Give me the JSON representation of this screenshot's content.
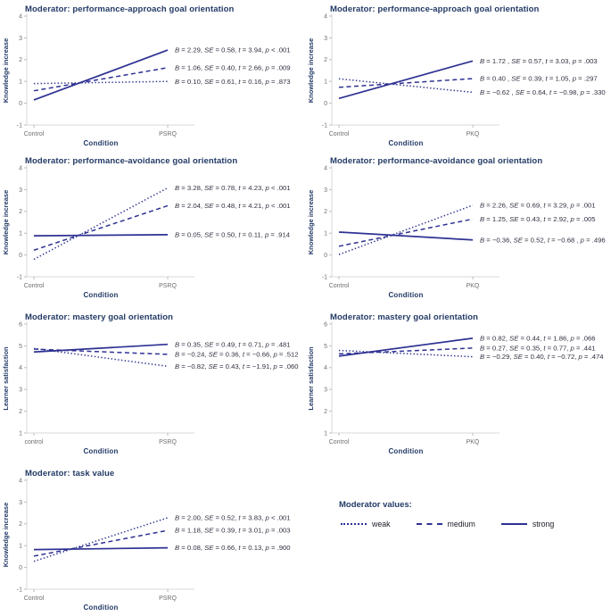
{
  "figure": {
    "background": "#ffffff",
    "colors": {
      "line": "#2e3192",
      "title": "#233a66",
      "axis_label": "#233a66",
      "tick_label": "#6e6e6e",
      "annotation": "#2f3040",
      "axis_line": "#d8d8d8"
    }
  },
  "legend": {
    "title": "Moderator values:",
    "items": [
      {
        "label": "weak",
        "style": "dotted"
      },
      {
        "label": "medium",
        "style": "dashed"
      },
      {
        "label": "strong",
        "style": "solid"
      }
    ]
  },
  "chart_data": [
    {
      "type": "line",
      "title": "Moderator: performance-approach goal orientation",
      "xlabel": "Condition",
      "ylabel": "Knowledge increase",
      "x_categories": [
        "Control",
        "PSRQ"
      ],
      "ylim": [
        -1,
        4
      ],
      "yticks": [
        4,
        3,
        2,
        1,
        0,
        -1
      ],
      "grid": false,
      "legend_position": "none",
      "series": [
        {
          "name": "strong",
          "style": "solid",
          "values": [
            0.15,
            2.44
          ],
          "annotation": "B = 2.29, SE = 0.58, t = 3.94, p < .001"
        },
        {
          "name": "medium",
          "style": "dashed",
          "values": [
            0.57,
            1.63
          ],
          "annotation": "B = 1.06, SE = 0.40, t = 2.66, p = .009"
        },
        {
          "name": "weak",
          "style": "dotted",
          "values": [
            0.9,
            1.0
          ],
          "annotation": "B = 0.10, SE = 0.61, t = 0.16, p = .873"
        }
      ]
    },
    {
      "type": "line",
      "title": "Moderator: performance-approach goal orientation",
      "xlabel": "Condition",
      "ylabel": "Knowledge increase",
      "x_categories": [
        "Control",
        "PKQ"
      ],
      "ylim": [
        -1,
        4
      ],
      "yticks": [
        4,
        3,
        2,
        1,
        0,
        -1
      ],
      "grid": false,
      "legend_position": "none",
      "series": [
        {
          "name": "strong",
          "style": "solid",
          "values": [
            0.22,
            1.94
          ],
          "annotation": "B = 1.72 , SE = 0.57, t = 3.03, p = .003"
        },
        {
          "name": "medium",
          "style": "dashed",
          "values": [
            0.73,
            1.13
          ],
          "annotation": "B = 0.40 , SE = 0.39, t = 1.05, p = .297"
        },
        {
          "name": "weak",
          "style": "dotted",
          "values": [
            1.12,
            0.5
          ],
          "annotation": "B = −0.62 , SE = 0.64, t = −0.98, p = .330"
        }
      ]
    },
    {
      "type": "line",
      "title": "Moderator: performance-avoidance goal orientation",
      "xlabel": "Condition",
      "ylabel": "Knowledge increase",
      "x_categories": [
        "Control",
        "PSRQ"
      ],
      "ylim": [
        -1,
        4
      ],
      "yticks": [
        4,
        3,
        2,
        1,
        0,
        -1
      ],
      "grid": false,
      "legend_position": "none",
      "series": [
        {
          "name": "weak",
          "style": "dotted",
          "values": [
            -0.2,
            3.08
          ],
          "annotation": "B = 3.28, SE = 0.78, t = 4.23, p < .001"
        },
        {
          "name": "medium",
          "style": "dashed",
          "values": [
            0.22,
            2.26
          ],
          "annotation": "B = 2.04, SE = 0.48, t = 4.21, p < .001"
        },
        {
          "name": "strong",
          "style": "solid",
          "values": [
            0.88,
            0.93
          ],
          "annotation": "B = 0.05, SE = 0.50, t = 0.11, p = .914"
        }
      ]
    },
    {
      "type": "line",
      "title": "Moderator: performance-avoidance goal orientation",
      "xlabel": "Condition",
      "ylabel": "Knowledge increase",
      "x_categories": [
        "Control",
        "PKQ"
      ],
      "ylim": [
        -1,
        4
      ],
      "yticks": [
        4,
        3,
        2,
        1,
        0,
        -1
      ],
      "grid": false,
      "legend_position": "none",
      "series": [
        {
          "name": "weak",
          "style": "dotted",
          "values": [
            0.02,
            2.28
          ],
          "annotation": "B = 2.26, SE = 0.69, t = 3.29, p = .001"
        },
        {
          "name": "medium",
          "style": "dashed",
          "values": [
            0.4,
            1.65
          ],
          "annotation": "B = 1.25, SE = 0.43, t = 2.92, p = .005"
        },
        {
          "name": "strong",
          "style": "solid",
          "values": [
            1.05,
            0.69
          ],
          "annotation": "B = −0.36, SE = 0.52, t = −0.68 , p = .496"
        }
      ]
    },
    {
      "type": "line",
      "title": "Moderator: mastery goal orientation",
      "xlabel": "Condition",
      "ylabel": "Learner satisfaction",
      "x_categories": [
        "control",
        "PSRQ"
      ],
      "ylim": [
        1,
        6
      ],
      "yticks": [
        6,
        5,
        4,
        3,
        2,
        1
      ],
      "grid": false,
      "legend_position": "none",
      "series": [
        {
          "name": "strong",
          "style": "solid",
          "values": [
            4.72,
            5.07
          ],
          "annotation": "B = 0.35, SE = 0.49, t = 0.71, p = .481"
        },
        {
          "name": "medium",
          "style": "dashed",
          "values": [
            4.85,
            4.61
          ],
          "annotation": "B = −0.24, SE = 0.36, t = −0.66, p = .512"
        },
        {
          "name": "weak",
          "style": "dotted",
          "values": [
            4.88,
            4.06
          ],
          "annotation": "B = −0.82, SE = 0.43, t = −1.91, p = .060"
        }
      ]
    },
    {
      "type": "line",
      "title": "Moderator: mastery goal orientation",
      "xlabel": "Condition",
      "ylabel": "Learner satisfaction",
      "x_categories": [
        "Control",
        "PKQ"
      ],
      "ylim": [
        1,
        6
      ],
      "yticks": [
        6,
        5,
        4,
        3,
        2,
        1
      ],
      "grid": false,
      "legend_position": "none",
      "series": [
        {
          "name": "strong",
          "style": "solid",
          "values": [
            4.53,
            5.35
          ],
          "annotation": "B = 0.82, SE = 0.44, t = 1.86, p = .066"
        },
        {
          "name": "medium",
          "style": "dashed",
          "values": [
            4.63,
            4.9
          ],
          "annotation": "B = 0.27, SE = 0.35, t = 0.77, p = .441"
        },
        {
          "name": "weak",
          "style": "dotted",
          "values": [
            4.79,
            4.5
          ],
          "annotation": "B = −0.29, SE = 0.40, t = −0.72, p = .474"
        }
      ]
    },
    {
      "type": "line",
      "title": "Moderator: task value",
      "xlabel": "Condition",
      "ylabel": "Knowledge increase",
      "x_categories": [
        "Control",
        "PSRQ"
      ],
      "ylim": [
        -1,
        4
      ],
      "yticks": [
        4,
        3,
        2,
        1,
        0,
        -1
      ],
      "grid": false,
      "legend_position": "none",
      "series": [
        {
          "name": "weak",
          "style": "dotted",
          "values": [
            0.28,
            2.28
          ],
          "annotation": "B = 2.00, SE = 0.52, t = 3.83, p < .001"
        },
        {
          "name": "medium",
          "style": "dashed",
          "values": [
            0.52,
            1.7
          ],
          "annotation": "B = 1.18, SE = 0.39, t = 3.01, p = .003"
        },
        {
          "name": "strong",
          "style": "solid",
          "values": [
            0.82,
            0.9
          ],
          "annotation": "B = 0.08, SE = 0.66, t = 0.13, p = .900"
        }
      ]
    }
  ]
}
